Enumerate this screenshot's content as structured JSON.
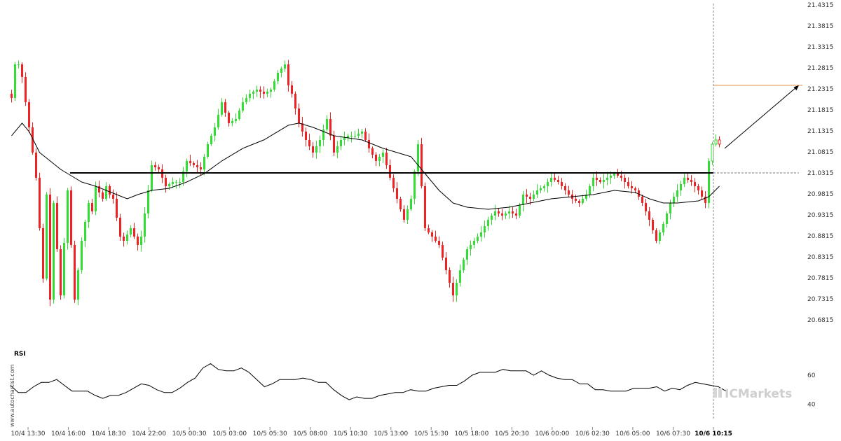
{
  "chart_data": {
    "type": "candlestick",
    "colors": {
      "up": "#33dd33",
      "down": "#ee2222",
      "ma": "#000000",
      "level": "#000000",
      "target": "#e88a3c",
      "arrow": "#000000"
    },
    "price_axis": {
      "min": 20.66,
      "max": 21.4315,
      "ticks": [
        "21.4315",
        "21.3815",
        "21.3315",
        "21.2815",
        "21.2315",
        "21.1815",
        "21.1315",
        "21.0815",
        "21.0315",
        "20.9815",
        "20.9315",
        "20.8815",
        "20.8315",
        "20.7815",
        "20.7315",
        "20.6815"
      ]
    },
    "time_axis": {
      "labels": [
        "10/4 13:30",
        "10/4 16:00",
        "10/4 18:30",
        "10/4 22:00",
        "10/5 00:30",
        "10/5 03:00",
        "10/5 05:30",
        "10/5 08:00",
        "10/5 10:30",
        "10/5 13:00",
        "10/5 15:30",
        "10/5 18:00",
        "10/5 20:30",
        "10/6 00:00",
        "10/6 02:30",
        "10/6 05:00",
        "10/6 07:30",
        "10/6 10:15"
      ],
      "highlight": "10/6 10:15"
    },
    "key_level": 21.0315,
    "target_level": 21.24,
    "projection": {
      "from": 21.09,
      "to": 21.24
    },
    "close_keys": [
      [
        0,
        21.21
      ],
      [
        1,
        21.29
      ],
      [
        2,
        21.29
      ],
      [
        3,
        21.26
      ],
      [
        5,
        21.14
      ],
      [
        7,
        21.02
      ],
      [
        9,
        20.78
      ],
      [
        10,
        20.98
      ],
      [
        11,
        20.73
      ],
      [
        12,
        20.96
      ],
      [
        14,
        20.74
      ],
      [
        16,
        20.99
      ],
      [
        18,
        20.73
      ],
      [
        20,
        20.87
      ],
      [
        22,
        20.96
      ],
      [
        23,
        20.94
      ],
      [
        24,
        21.0
      ],
      [
        26,
        20.97
      ],
      [
        27,
        21.0
      ],
      [
        28,
        20.98
      ],
      [
        29,
        20.97
      ],
      [
        31,
        20.88
      ],
      [
        32,
        20.87
      ],
      [
        34,
        20.9
      ],
      [
        36,
        20.86
      ],
      [
        37,
        20.88
      ],
      [
        39,
        20.99
      ],
      [
        40,
        21.05
      ],
      [
        42,
        21.04
      ],
      [
        44,
        21.0
      ],
      [
        46,
        21.01
      ],
      [
        48,
        21.01
      ],
      [
        50,
        21.06
      ],
      [
        52,
        21.05
      ],
      [
        54,
        21.04
      ],
      [
        56,
        21.1
      ],
      [
        58,
        21.14
      ],
      [
        60,
        21.2
      ],
      [
        62,
        21.15
      ],
      [
        64,
        21.16
      ],
      [
        66,
        21.2
      ],
      [
        68,
        21.22
      ],
      [
        70,
        21.23
      ],
      [
        72,
        21.22
      ],
      [
        74,
        21.23
      ],
      [
        76,
        21.27
      ],
      [
        78,
        21.29
      ],
      [
        79,
        21.24
      ],
      [
        80,
        21.22
      ],
      [
        82,
        21.15
      ],
      [
        84,
        21.11
      ],
      [
        86,
        21.08
      ],
      [
        88,
        21.11
      ],
      [
        90,
        21.16
      ],
      [
        92,
        21.08
      ],
      [
        94,
        21.11
      ],
      [
        96,
        21.12
      ],
      [
        98,
        21.12
      ],
      [
        100,
        21.13
      ],
      [
        102,
        21.09
      ],
      [
        104,
        21.06
      ],
      [
        106,
        21.08
      ],
      [
        108,
        21.02
      ],
      [
        110,
        20.97
      ],
      [
        112,
        20.92
      ],
      [
        114,
        20.97
      ],
      [
        116,
        21.1
      ],
      [
        118,
        20.9
      ],
      [
        120,
        20.88
      ],
      [
        122,
        20.86
      ],
      [
        124,
        20.8
      ],
      [
        126,
        20.74
      ],
      [
        128,
        20.8
      ],
      [
        130,
        20.85
      ],
      [
        132,
        20.87
      ],
      [
        134,
        20.89
      ],
      [
        136,
        20.92
      ],
      [
        138,
        20.94
      ],
      [
        140,
        20.93
      ],
      [
        142,
        20.94
      ],
      [
        144,
        20.93
      ],
      [
        146,
        20.98
      ],
      [
        148,
        20.97
      ],
      [
        150,
        20.99
      ],
      [
        152,
        21.0
      ],
      [
        154,
        21.02
      ],
      [
        156,
        21.01
      ],
      [
        158,
        20.99
      ],
      [
        160,
        20.97
      ],
      [
        162,
        20.96
      ],
      [
        164,
        20.98
      ],
      [
        166,
        21.02
      ],
      [
        168,
        21.01
      ],
      [
        170,
        21.02
      ],
      [
        172,
        21.03
      ],
      [
        174,
        21.02
      ],
      [
        176,
        21.0
      ],
      [
        178,
        20.99
      ],
      [
        180,
        20.96
      ],
      [
        182,
        20.92
      ],
      [
        184,
        20.87
      ],
      [
        186,
        20.91
      ],
      [
        188,
        20.96
      ],
      [
        190,
        20.99
      ],
      [
        192,
        21.02
      ],
      [
        194,
        21.01
      ],
      [
        196,
        20.99
      ],
      [
        198,
        20.96
      ],
      [
        199,
        21.06
      ],
      [
        200,
        21.1
      ],
      [
        201,
        21.11
      ],
      [
        202,
        21.1
      ]
    ],
    "ma_keys": [
      [
        0,
        21.12
      ],
      [
        3,
        21.15
      ],
      [
        5,
        21.13
      ],
      [
        8,
        21.08
      ],
      [
        11,
        21.06
      ],
      [
        14,
        21.04
      ],
      [
        17,
        21.025
      ],
      [
        20,
        21.01
      ],
      [
        24,
        21.0
      ],
      [
        27,
        20.99
      ],
      [
        30,
        20.98
      ],
      [
        33,
        20.97
      ],
      [
        36,
        20.98
      ],
      [
        40,
        20.99
      ],
      [
        45,
        20.995
      ],
      [
        50,
        21.01
      ],
      [
        55,
        21.03
      ],
      [
        60,
        21.06
      ],
      [
        66,
        21.09
      ],
      [
        72,
        21.11
      ],
      [
        76,
        21.13
      ],
      [
        79,
        21.145
      ],
      [
        82,
        21.15
      ],
      [
        86,
        21.14
      ],
      [
        92,
        21.12
      ],
      [
        100,
        21.11
      ],
      [
        106,
        21.09
      ],
      [
        110,
        21.08
      ],
      [
        114,
        21.07
      ],
      [
        118,
        21.03
      ],
      [
        122,
        20.99
      ],
      [
        126,
        20.96
      ],
      [
        130,
        20.95
      ],
      [
        136,
        20.945
      ],
      [
        142,
        20.95
      ],
      [
        148,
        20.96
      ],
      [
        154,
        20.97
      ],
      [
        160,
        20.975
      ],
      [
        166,
        20.98
      ],
      [
        172,
        20.99
      ],
      [
        178,
        20.985
      ],
      [
        182,
        20.97
      ],
      [
        186,
        20.96
      ],
      [
        190,
        20.96
      ],
      [
        196,
        20.965
      ],
      [
        199,
        20.975
      ],
      [
        202,
        21.0
      ]
    ],
    "rsi": {
      "label": "RSI",
      "min": 30,
      "max": 75,
      "ticks": [
        "60",
        "40"
      ],
      "keys": [
        [
          0,
          53
        ],
        [
          2,
          48
        ],
        [
          4,
          48
        ],
        [
          6,
          52
        ],
        [
          8,
          55
        ],
        [
          10,
          55
        ],
        [
          12,
          57
        ],
        [
          14,
          53
        ],
        [
          16,
          49
        ],
        [
          18,
          49
        ],
        [
          20,
          49
        ],
        [
          22,
          46
        ],
        [
          24,
          44
        ],
        [
          26,
          46
        ],
        [
          28,
          46
        ],
        [
          30,
          48
        ],
        [
          32,
          51
        ],
        [
          34,
          54
        ],
        [
          36,
          53
        ],
        [
          38,
          50
        ],
        [
          40,
          48
        ],
        [
          42,
          48
        ],
        [
          44,
          51
        ],
        [
          46,
          55
        ],
        [
          48,
          58
        ],
        [
          50,
          65
        ],
        [
          52,
          68
        ],
        [
          54,
          64
        ],
        [
          56,
          63
        ],
        [
          58,
          63
        ],
        [
          60,
          65
        ],
        [
          62,
          62
        ],
        [
          64,
          57
        ],
        [
          66,
          52
        ],
        [
          68,
          54
        ],
        [
          70,
          57
        ],
        [
          72,
          57
        ],
        [
          74,
          57
        ],
        [
          76,
          58
        ],
        [
          78,
          57
        ],
        [
          80,
          55
        ],
        [
          82,
          55
        ],
        [
          84,
          50
        ],
        [
          86,
          46
        ],
        [
          88,
          43
        ],
        [
          90,
          45
        ],
        [
          92,
          44
        ],
        [
          94,
          44
        ],
        [
          96,
          46
        ],
        [
          98,
          47
        ],
        [
          100,
          48
        ],
        [
          102,
          48
        ],
        [
          104,
          50
        ],
        [
          106,
          49
        ],
        [
          108,
          49
        ],
        [
          110,
          51
        ],
        [
          112,
          52
        ],
        [
          114,
          53
        ],
        [
          116,
          53
        ],
        [
          118,
          56
        ],
        [
          120,
          60
        ],
        [
          122,
          62
        ],
        [
          124,
          62
        ],
        [
          126,
          62
        ],
        [
          128,
          64
        ],
        [
          130,
          63
        ],
        [
          132,
          63
        ],
        [
          134,
          63
        ],
        [
          136,
          60
        ],
        [
          138,
          63
        ],
        [
          140,
          60
        ],
        [
          142,
          58
        ],
        [
          144,
          57
        ],
        [
          146,
          57
        ],
        [
          148,
          54
        ],
        [
          150,
          54
        ],
        [
          152,
          50
        ],
        [
          154,
          50
        ],
        [
          156,
          49
        ],
        [
          158,
          49
        ],
        [
          160,
          49
        ],
        [
          162,
          51
        ],
        [
          164,
          51
        ],
        [
          166,
          51
        ],
        [
          168,
          52
        ],
        [
          170,
          49
        ],
        [
          172,
          51
        ],
        [
          174,
          50
        ],
        [
          176,
          53
        ],
        [
          178,
          55
        ],
        [
          180,
          54
        ],
        [
          182,
          53
        ],
        [
          184,
          52
        ],
        [
          186,
          49
        ]
      ]
    },
    "watermark": "www.autochartist.com",
    "brand": "ICMarkets"
  }
}
